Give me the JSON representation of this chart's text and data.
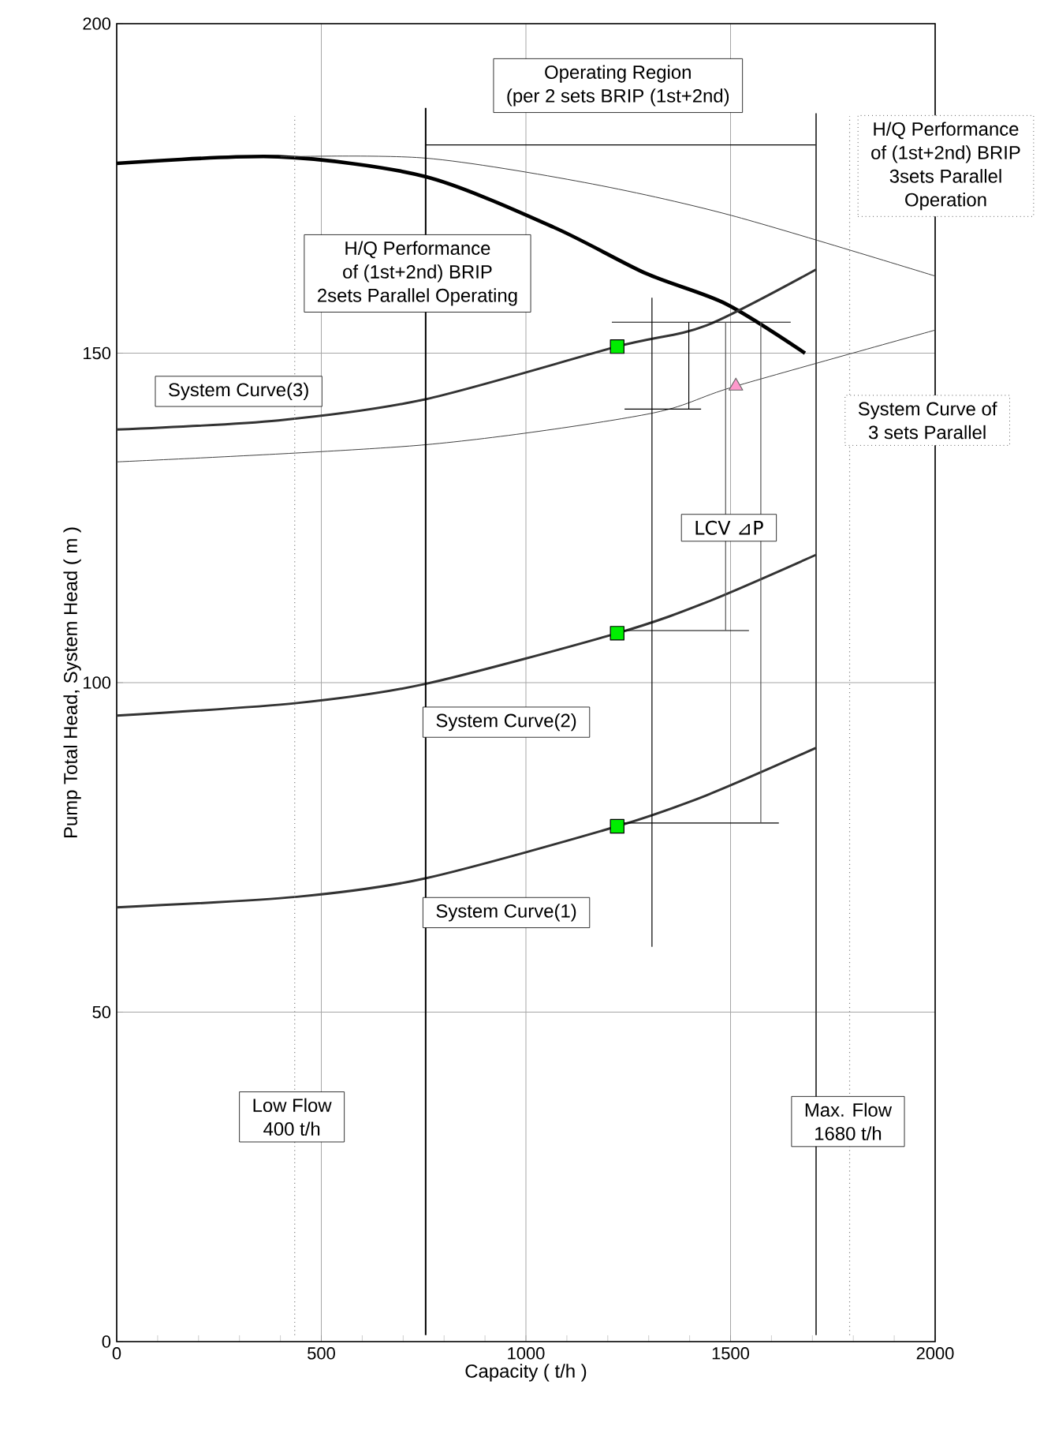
{
  "chart_data": {
    "type": "line",
    "xlabel": "Capacity ( t/h )",
    "ylabel": "Pump Total Head, System Head ( m )",
    "xlim": [
      0,
      2000
    ],
    "ylim": [
      0,
      200
    ],
    "xticks": [
      0,
      500,
      1000,
      1500,
      2000
    ],
    "yticks": [
      0,
      50,
      100,
      150,
      200
    ],
    "grid": true,
    "marker": "none",
    "series": [
      {
        "color": "#000000",
        "x": [
          0,
          395,
          754,
          1068,
          1293,
          1488,
          1682
        ],
        "values": [
          178.8,
          179.8,
          176.8,
          169.1,
          162.1,
          157.5,
          150.0
        ]
      },
      {
        "color": "#404040",
        "x": [
          400,
          754,
          1143,
          1502,
          2000
        ],
        "values": [
          179.8,
          179.6,
          175.9,
          170.9,
          161.7
        ]
      },
      {
        "color": "#333333",
        "x": [
          0,
          395,
          754,
          1223,
          1441,
          1709
        ],
        "values": [
          138.4,
          139.8,
          143.0,
          151.0,
          154.2,
          162.7
        ]
      },
      {
        "color": "#404040",
        "x": [
          0,
          754,
          1293,
          1513,
          2000
        ],
        "values": [
          133.5,
          136.1,
          140.7,
          145.0,
          153.5
        ]
      },
      {
        "color": "#333333",
        "x": [
          0,
          440,
          754,
          1223,
          1441,
          1709
        ],
        "values": [
          95.0,
          96.9,
          99.8,
          107.5,
          112.2,
          119.4
        ]
      },
      {
        "color": "#333333",
        "x": [
          0,
          440,
          754,
          1223,
          1441,
          1709
        ],
        "values": [
          65.9,
          67.5,
          70.3,
          78.2,
          82.9,
          90.1
        ]
      },
      {
        "color": "#000000",
        "x": [
          1308,
          1308
        ],
        "values": [
          158.4,
          59.9
        ]
      },
      {
        "color": "#000000",
        "x": [
          1210,
          1647
        ],
        "values": [
          154.7,
          154.7
        ]
      },
      {
        "color": "#000000",
        "x": [
          1241,
          1428
        ],
        "values": [
          141.5,
          141.5
        ]
      },
      {
        "color": "#000000",
        "x": [
          1223,
          1545
        ],
        "values": [
          107.9,
          107.9
        ]
      },
      {
        "color": "#000000",
        "x": [
          1223,
          1618
        ],
        "values": [
          78.7,
          78.7
        ]
      },
      {
        "color": "#000000",
        "x": [
          1398,
          1398
        ],
        "values": [
          141.5,
          154.7
        ]
      },
      {
        "color": "#555555",
        "x": [
          1488,
          1488
        ],
        "values": [
          107.9,
          154.7
        ]
      },
      {
        "color": "#555555",
        "x": [
          1574,
          1574
        ],
        "values": [
          78.7,
          154.7
        ]
      },
      {
        "color": "#000000",
        "x": [
          755,
          1709
        ],
        "values": [
          181.6,
          181.6
        ]
      },
      {
        "color": "#000000",
        "x": [
          755,
          755
        ],
        "values": [
          1,
          187.2
        ]
      },
      {
        "color": "#333333",
        "x": [
          1709,
          1709
        ],
        "values": [
          1,
          186.4
        ]
      },
      {
        "color": "#808080",
        "line_style": "dotted",
        "x": [
          435,
          435
        ],
        "values": [
          1,
          186
        ]
      },
      {
        "color": "#808080",
        "line_style": "dotted",
        "x": [
          1791,
          1791
        ],
        "values": [
          1,
          186
        ]
      },
      {
        "type": "scatter",
        "marker": "square",
        "color": "#00ee00",
        "x": [
          1223,
          1223,
          1223
        ],
        "values": [
          151.0,
          107.5,
          78.2
        ]
      },
      {
        "type": "scatter",
        "marker": "triangle",
        "color": "#ff99cc",
        "x": [
          1513
        ],
        "values": [
          145.0
        ]
      }
    ],
    "annotations": [
      "Operating Region",
      "(per 2 sets BRIP (1st+2nd)",
      "H/Q Performance",
      "of (1st+2nd) BRIP",
      "3sets Parallel",
      "Operation",
      "H/Q Performance",
      "of (1st+2nd) BRIP",
      "2sets Parallel Operating",
      "System Curve(3)",
      "System Curve of",
      "3 sets Parallel",
      "LCV ⊿P",
      "System Curve(2)",
      "System Curve(1)",
      "Low Flow",
      "400 t/h",
      "Max. Flow",
      "1680 t/h"
    ]
  }
}
